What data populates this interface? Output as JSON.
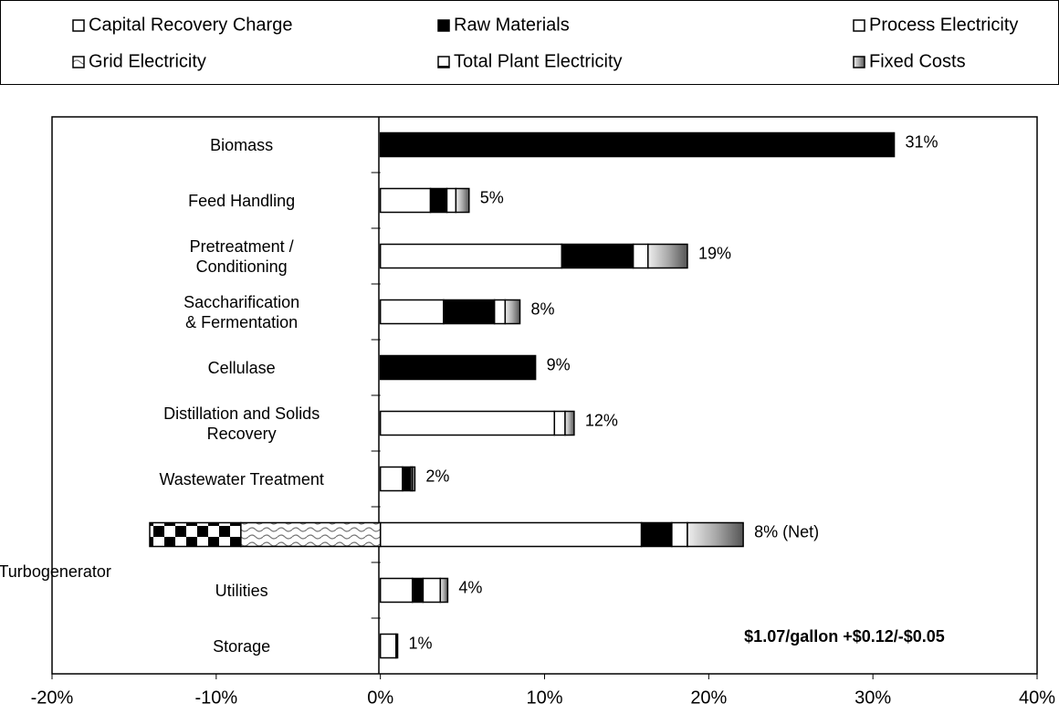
{
  "chart_data": {
    "type": "hbar-stacked",
    "categories": [
      "Biomass",
      "Feed Handling",
      "Pretreatment /\nConditioning",
      "Saccharification\n& Fermentation",
      "Cellulase",
      "Distillation and Solids\nRecovery",
      "Wastewater Treatment",
      "Boiler/Turbogenerator",
      "Utilities",
      "Storage"
    ],
    "series": [
      {
        "name": "Capital Recovery Charge",
        "color": "#ffffff",
        "values": [
          0,
          3.05,
          11.05,
          3.85,
          0,
          10.6,
          1.35,
          15.9,
          1.95,
          0.95
        ]
      },
      {
        "name": "Raw Materials",
        "color": "#000000",
        "values": [
          31.3,
          1.0,
          4.35,
          3.1,
          9.45,
          0,
          0.5,
          1.85,
          0.65,
          0.1
        ]
      },
      {
        "name": "Process Electricity",
        "color": "#ffffff",
        "values": [
          0,
          0.55,
          0.9,
          0.65,
          0,
          0.65,
          0.1,
          0.95,
          1.05,
          0
        ]
      },
      {
        "name": "Grid Electricity",
        "color": "#ffffff",
        "pattern": "wave",
        "values": [
          0,
          0,
          0,
          0,
          0,
          0,
          0,
          -8.5,
          0,
          0
        ]
      },
      {
        "name": "Total Plant Electricity",
        "color": "#000000",
        "pattern": "checker",
        "values": [
          0,
          0,
          0,
          0,
          0,
          0,
          0,
          -5.55,
          0,
          0
        ]
      },
      {
        "name": "Fixed Costs",
        "color": "#999999",
        "pattern": "gradient",
        "values": [
          0,
          0.8,
          2.4,
          0.9,
          0,
          0.55,
          0.15,
          3.4,
          0.45,
          0
        ]
      }
    ],
    "totals": [
      31,
      5,
      19,
      8,
      9,
      12,
      2,
      8,
      4,
      1
    ],
    "total_labels": [
      "31%",
      "5%",
      "19%",
      "8%",
      "9%",
      "12%",
      "2%",
      "8% (Net)",
      "4%",
      "1%"
    ],
    "annotation": "$1.07/gallon +$0.12/-$0.05",
    "xlim": [
      -20,
      40
    ],
    "xticks": [
      {
        "value": -20,
        "label": "-20%"
      },
      {
        "value": -10,
        "label": "-10%"
      },
      {
        "value": 0,
        "label": "0%"
      },
      {
        "value": 10,
        "label": "10%"
      },
      {
        "value": 20,
        "label": "20%"
      },
      {
        "value": 30,
        "label": "30%"
      },
      {
        "value": 40,
        "label": "40%"
      }
    ],
    "legend": "top"
  }
}
